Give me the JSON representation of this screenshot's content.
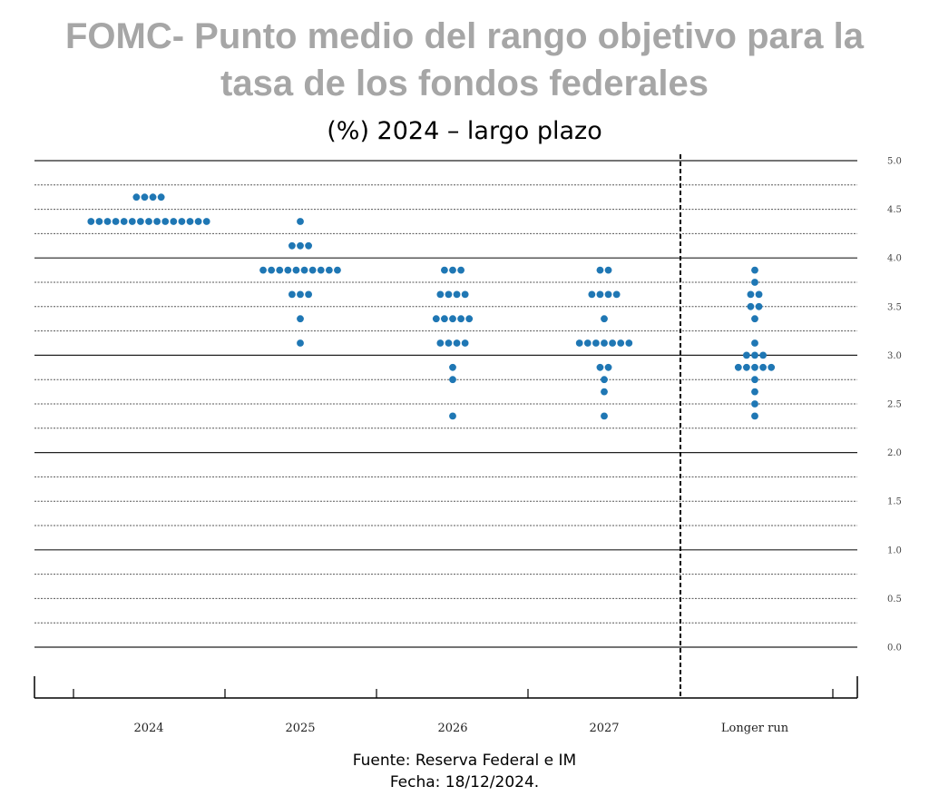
{
  "title_line1": "FOMC- Punto medio del rango objetivo para la",
  "title_line2": "tasa de los fondos federales",
  "subtitle": "(%) 2024 – largo plazo",
  "source": "Fuente: Reserva Federal e IM",
  "date": "Fecha: 18/12/2024.",
  "chart_data": {
    "type": "scatter",
    "title": "FOMC- Punto medio del rango objetivo para la tasa de los fondos federales",
    "subtitle": "(%) 2024 – largo plazo",
    "xlabel": "",
    "ylabel": "",
    "ylim": [
      0,
      5
    ],
    "yticks": [
      "5.0",
      "4.5",
      "4.0",
      "3.5",
      "3.0",
      "2.5",
      "2.0",
      "1.5",
      "1.0",
      "0.5",
      "0.0"
    ],
    "categories": [
      "2024",
      "2025",
      "2026",
      "2027",
      "Longer run"
    ],
    "dot_color": "#1f77b4",
    "grid": true,
    "series": [
      {
        "category": "2024",
        "levels": [
          {
            "rate": 4.625,
            "count": 4
          },
          {
            "rate": 4.375,
            "count": 15
          }
        ]
      },
      {
        "category": "2025",
        "levels": [
          {
            "rate": 4.375,
            "count": 1
          },
          {
            "rate": 4.125,
            "count": 3
          },
          {
            "rate": 3.875,
            "count": 10
          },
          {
            "rate": 3.625,
            "count": 3
          },
          {
            "rate": 3.375,
            "count": 1
          },
          {
            "rate": 3.125,
            "count": 1
          }
        ]
      },
      {
        "category": "2026",
        "levels": [
          {
            "rate": 3.875,
            "count": 3
          },
          {
            "rate": 3.625,
            "count": 4
          },
          {
            "rate": 3.375,
            "count": 5
          },
          {
            "rate": 3.125,
            "count": 4
          },
          {
            "rate": 2.875,
            "count": 1
          },
          {
            "rate": 2.75,
            "count": 1
          },
          {
            "rate": 2.375,
            "count": 1
          }
        ]
      },
      {
        "category": "2027",
        "levels": [
          {
            "rate": 3.875,
            "count": 2
          },
          {
            "rate": 3.625,
            "count": 4
          },
          {
            "rate": 3.375,
            "count": 1
          },
          {
            "rate": 3.125,
            "count": 7
          },
          {
            "rate": 2.875,
            "count": 2
          },
          {
            "rate": 2.75,
            "count": 1
          },
          {
            "rate": 2.625,
            "count": 1
          },
          {
            "rate": 2.375,
            "count": 1
          }
        ]
      },
      {
        "category": "Longer run",
        "levels": [
          {
            "rate": 3.875,
            "count": 1
          },
          {
            "rate": 3.75,
            "count": 1
          },
          {
            "rate": 3.625,
            "count": 2
          },
          {
            "rate": 3.5,
            "count": 2
          },
          {
            "rate": 3.375,
            "count": 1
          },
          {
            "rate": 3.125,
            "count": 1
          },
          {
            "rate": 3.0,
            "count": 3
          },
          {
            "rate": 2.875,
            "count": 5
          },
          {
            "rate": 2.75,
            "count": 1
          },
          {
            "rate": 2.625,
            "count": 1
          },
          {
            "rate": 2.5,
            "count": 1
          },
          {
            "rate": 2.375,
            "count": 1
          }
        ]
      }
    ]
  }
}
